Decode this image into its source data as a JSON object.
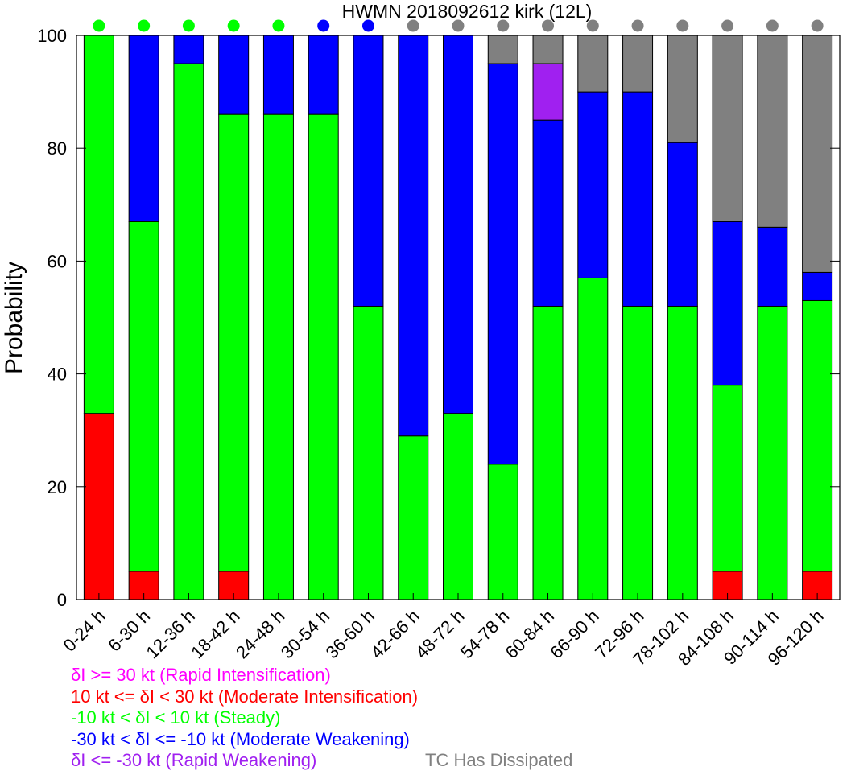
{
  "chart_data": {
    "type": "bar",
    "stacked": true,
    "title": "HWMN 2018092612 kirk (12L)",
    "ylabel": "Probability",
    "xlabel": "",
    "ylim": [
      0,
      100
    ],
    "yticks": [
      0,
      20,
      40,
      60,
      80,
      100
    ],
    "grid": false,
    "categories": [
      "0-24 h",
      "6-30 h",
      "12-36 h",
      "18-42 h",
      "24-48 h",
      "30-54 h",
      "36-60 h",
      "42-66 h",
      "48-72 h",
      "54-78 h",
      "60-84 h",
      "66-90 h",
      "72-96 h",
      "78-102 h",
      "84-108 h",
      "90-114 h",
      "96-120 h"
    ],
    "series": [
      {
        "name": "δI >= 30 kt (Rapid Intensification)",
        "color": "#ff00ff",
        "values": [
          0,
          0,
          0,
          0,
          0,
          0,
          0,
          0,
          0,
          0,
          0,
          0,
          0,
          0,
          0,
          0,
          0
        ]
      },
      {
        "name": "10 kt <= δI < 30 kt (Moderate Intensification)",
        "color": "#ff0000",
        "values": [
          33,
          5,
          0,
          5,
          0,
          0,
          0,
          0,
          0,
          0,
          0,
          0,
          0,
          0,
          5,
          0,
          5
        ]
      },
      {
        "name": "-10 kt < δI < 10 kt (Steady)",
        "color": "#00ff00",
        "values": [
          67,
          62,
          95,
          81,
          86,
          86,
          52,
          29,
          33,
          24,
          52,
          57,
          52,
          52,
          33,
          52,
          48
        ]
      },
      {
        "name": "-30 kt < δI <= -10 kt (Moderate Weakening)",
        "color": "#0000ff",
        "values": [
          0,
          33,
          5,
          14,
          14,
          14,
          48,
          71,
          67,
          71,
          33,
          33,
          38,
          29,
          29,
          14,
          5
        ]
      },
      {
        "name": "δI <= -30 kt (Rapid Weakening)",
        "color": "#a020f0",
        "values": [
          0,
          0,
          0,
          0,
          0,
          0,
          0,
          0,
          0,
          0,
          10,
          0,
          0,
          0,
          0,
          0,
          0
        ]
      },
      {
        "name": "TC Has Dissipated",
        "color": "#808080",
        "values": [
          0,
          0,
          0,
          0,
          0,
          0,
          0,
          0,
          0,
          5,
          5,
          10,
          10,
          19,
          33,
          34,
          42
        ]
      }
    ],
    "top_markers": [
      "#00ff00",
      "#00ff00",
      "#00ff00",
      "#00ff00",
      "#00ff00",
      "#0000ff",
      "#0000ff",
      "#808080",
      "#808080",
      "#808080",
      "#808080",
      "#808080",
      "#808080",
      "#808080",
      "#808080",
      "#808080",
      "#808080"
    ]
  },
  "legend": {
    "rapid_intensification": {
      "label": "δI >= 30 kt (Rapid Intensification)",
      "color": "#ff00ff"
    },
    "moderate_intensification": {
      "label": "10 kt <= δI < 30 kt (Moderate Intensification)",
      "color": "#ff0000"
    },
    "steady": {
      "label": "-10 kt < δI < 10 kt (Steady)",
      "color": "#00ff00"
    },
    "moderate_weakening": {
      "label": "-30 kt < δI <= -10 kt (Moderate Weakening)",
      "color": "#0000ff"
    },
    "rapid_weakening": {
      "label": "δI <= -30 kt (Rapid Weakening)",
      "color": "#a020f0"
    },
    "dissipated": {
      "label": "TC Has Dissipated",
      "color": "#808080"
    }
  }
}
